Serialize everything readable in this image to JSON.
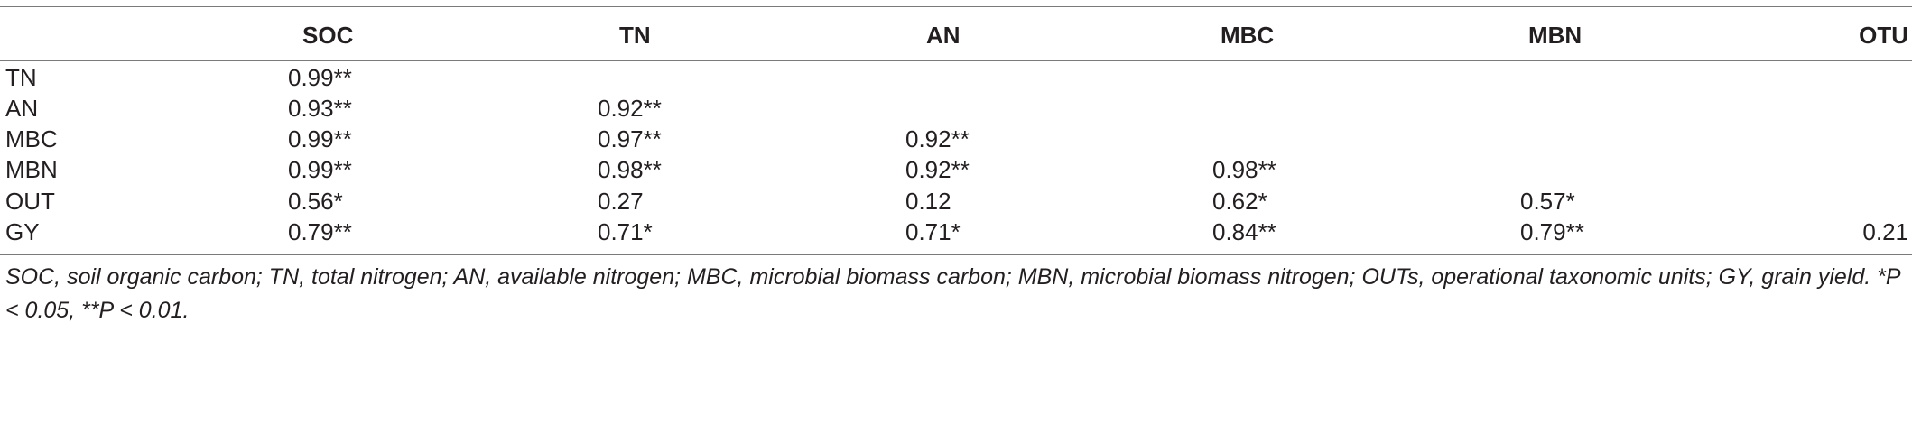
{
  "table": {
    "columns": [
      "",
      "SOC",
      "TN",
      "AN",
      "MBC",
      "MBN",
      "OTU"
    ],
    "rows": [
      {
        "label": "TN",
        "values": [
          "0.99**",
          "",
          "",
          "",
          "",
          ""
        ]
      },
      {
        "label": "AN",
        "values": [
          "0.93**",
          "0.92**",
          "",
          "",
          "",
          ""
        ]
      },
      {
        "label": "MBC",
        "values": [
          "0.99**",
          "0.97**",
          "0.92**",
          "",
          "",
          ""
        ]
      },
      {
        "label": "MBN",
        "values": [
          "0.99**",
          "0.98**",
          "0.92**",
          "0.98**",
          "",
          ""
        ]
      },
      {
        "label": "OUT",
        "values": [
          "0.56*",
          "0.27",
          "0.12",
          "0.62*",
          "0.57*",
          ""
        ]
      },
      {
        "label": "GY",
        "values": [
          "0.79**",
          "0.71*",
          "0.71*",
          "0.84**",
          "0.79**",
          "0.21"
        ]
      }
    ],
    "footnote": "SOC, soil organic carbon; TN, total nitrogen; AN, available nitrogen; MBC, microbial biomass carbon; MBN, microbial biomass nitrogen; OUTs, operational taxonomic units; GY, grain yield. *P < 0.05, **P < 0.01."
  }
}
